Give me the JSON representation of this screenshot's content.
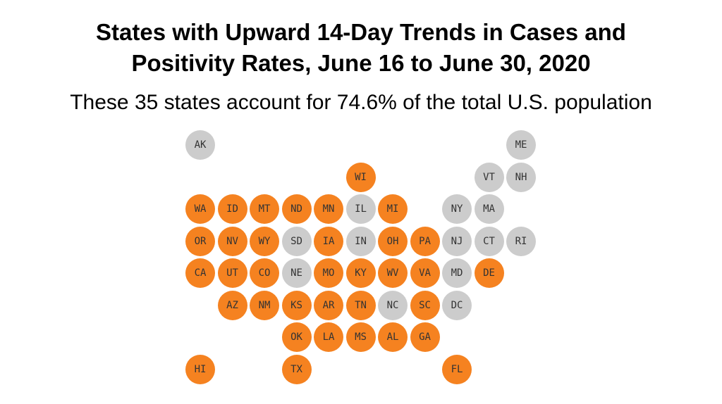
{
  "header": {
    "title_line1": "States with Upward 14-Day Trends in Cases and",
    "title_line2": "Positivity Rates, June 16 to June 30, 2020",
    "subtitle": "These 35 states account for 74.6% of the total U.S. population"
  },
  "colors": {
    "upward": "#f58220",
    "not_upward": "#cccccc",
    "label_text": "#333333"
  },
  "states": [
    {
      "abbr": "AK",
      "upward": false,
      "row": 0,
      "col": 0
    },
    {
      "abbr": "ME",
      "upward": false,
      "row": 0,
      "col": 10
    },
    {
      "abbr": "WI",
      "upward": true,
      "row": 1,
      "col": 5
    },
    {
      "abbr": "VT",
      "upward": false,
      "row": 1,
      "col": 9
    },
    {
      "abbr": "NH",
      "upward": false,
      "row": 1,
      "col": 10
    },
    {
      "abbr": "WA",
      "upward": true,
      "row": 2,
      "col": 0
    },
    {
      "abbr": "ID",
      "upward": true,
      "row": 2,
      "col": 1
    },
    {
      "abbr": "MT",
      "upward": true,
      "row": 2,
      "col": 2
    },
    {
      "abbr": "ND",
      "upward": true,
      "row": 2,
      "col": 3
    },
    {
      "abbr": "MN",
      "upward": true,
      "row": 2,
      "col": 4
    },
    {
      "abbr": "IL",
      "upward": false,
      "row": 2,
      "col": 5
    },
    {
      "abbr": "MI",
      "upward": true,
      "row": 2,
      "col": 6
    },
    {
      "abbr": "NY",
      "upward": false,
      "row": 2,
      "col": 8
    },
    {
      "abbr": "MA",
      "upward": false,
      "row": 2,
      "col": 9
    },
    {
      "abbr": "OR",
      "upward": true,
      "row": 3,
      "col": 0
    },
    {
      "abbr": "NV",
      "upward": true,
      "row": 3,
      "col": 1
    },
    {
      "abbr": "WY",
      "upward": true,
      "row": 3,
      "col": 2
    },
    {
      "abbr": "SD",
      "upward": false,
      "row": 3,
      "col": 3
    },
    {
      "abbr": "IA",
      "upward": true,
      "row": 3,
      "col": 4
    },
    {
      "abbr": "IN",
      "upward": false,
      "row": 3,
      "col": 5
    },
    {
      "abbr": "OH",
      "upward": true,
      "row": 3,
      "col": 6
    },
    {
      "abbr": "PA",
      "upward": true,
      "row": 3,
      "col": 7
    },
    {
      "abbr": "NJ",
      "upward": false,
      "row": 3,
      "col": 8
    },
    {
      "abbr": "CT",
      "upward": false,
      "row": 3,
      "col": 9
    },
    {
      "abbr": "RI",
      "upward": false,
      "row": 3,
      "col": 10
    },
    {
      "abbr": "CA",
      "upward": true,
      "row": 4,
      "col": 0
    },
    {
      "abbr": "UT",
      "upward": true,
      "row": 4,
      "col": 1
    },
    {
      "abbr": "CO",
      "upward": true,
      "row": 4,
      "col": 2
    },
    {
      "abbr": "NE",
      "upward": false,
      "row": 4,
      "col": 3
    },
    {
      "abbr": "MO",
      "upward": true,
      "row": 4,
      "col": 4
    },
    {
      "abbr": "KY",
      "upward": true,
      "row": 4,
      "col": 5
    },
    {
      "abbr": "WV",
      "upward": true,
      "row": 4,
      "col": 6
    },
    {
      "abbr": "VA",
      "upward": true,
      "row": 4,
      "col": 7
    },
    {
      "abbr": "MD",
      "upward": false,
      "row": 4,
      "col": 8
    },
    {
      "abbr": "DE",
      "upward": true,
      "row": 4,
      "col": 9
    },
    {
      "abbr": "AZ",
      "upward": true,
      "row": 5,
      "col": 1
    },
    {
      "abbr": "NM",
      "upward": true,
      "row": 5,
      "col": 2
    },
    {
      "abbr": "KS",
      "upward": true,
      "row": 5,
      "col": 3
    },
    {
      "abbr": "AR",
      "upward": true,
      "row": 5,
      "col": 4
    },
    {
      "abbr": "TN",
      "upward": true,
      "row": 5,
      "col": 5
    },
    {
      "abbr": "NC",
      "upward": false,
      "row": 5,
      "col": 6
    },
    {
      "abbr": "SC",
      "upward": true,
      "row": 5,
      "col": 7
    },
    {
      "abbr": "DC",
      "upward": false,
      "row": 5,
      "col": 8
    },
    {
      "abbr": "OK",
      "upward": true,
      "row": 6,
      "col": 3
    },
    {
      "abbr": "LA",
      "upward": true,
      "row": 6,
      "col": 4
    },
    {
      "abbr": "MS",
      "upward": true,
      "row": 6,
      "col": 5
    },
    {
      "abbr": "AL",
      "upward": true,
      "row": 6,
      "col": 6
    },
    {
      "abbr": "GA",
      "upward": true,
      "row": 6,
      "col": 7
    },
    {
      "abbr": "HI",
      "upward": true,
      "row": 7,
      "col": 0
    },
    {
      "abbr": "TX",
      "upward": true,
      "row": 7,
      "col": 3
    },
    {
      "abbr": "FL",
      "upward": true,
      "row": 7,
      "col": 8
    }
  ]
}
